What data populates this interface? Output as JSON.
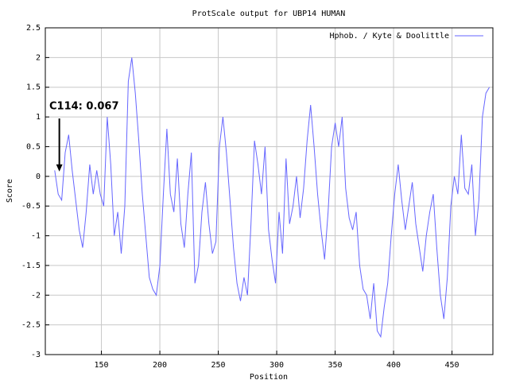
{
  "chart_data": {
    "type": "line",
    "title": "ProtScale output for UBP14 HUMAN",
    "xlabel": "Position",
    "ylabel": "Score",
    "x": [
      110,
      113,
      116,
      119,
      122,
      125,
      128,
      131,
      134,
      137,
      140,
      143,
      146,
      149,
      152,
      155,
      158,
      161,
      164,
      167,
      170,
      173,
      176,
      179,
      182,
      185,
      188,
      191,
      194,
      197,
      200,
      203,
      206,
      209,
      212,
      215,
      218,
      221,
      224,
      227,
      230,
      233,
      236,
      239,
      242,
      245,
      248,
      251,
      254,
      257,
      260,
      263,
      266,
      269,
      272,
      275,
      278,
      281,
      284,
      287,
      290,
      293,
      296,
      299,
      302,
      305,
      308,
      311,
      314,
      317,
      320,
      323,
      326,
      329,
      332,
      335,
      338,
      341,
      344,
      347,
      350,
      353,
      356,
      359,
      362,
      365,
      368,
      371,
      374,
      377,
      380,
      383,
      386,
      389,
      392,
      395,
      398,
      401,
      404,
      407,
      410,
      413,
      416,
      419,
      422,
      425,
      428,
      431,
      434,
      437,
      440,
      443,
      446,
      449,
      452,
      455,
      458,
      461,
      464,
      467,
      470,
      473,
      476,
      479,
      482
    ],
    "series": [
      {
        "name": "Hphob. / Kyte & Doolittle",
        "color": "#6666ff",
        "values": [
          0.1,
          -0.3,
          -0.4,
          0.4,
          0.7,
          0.1,
          -0.4,
          -0.9,
          -1.2,
          -0.6,
          0.2,
          -0.3,
          0.1,
          -0.3,
          -0.5,
          1.0,
          0.2,
          -1.0,
          -0.6,
          -1.3,
          -0.5,
          1.6,
          2.0,
          1.4,
          0.6,
          -0.3,
          -1.0,
          -1.7,
          -1.9,
          -2.0,
          -1.5,
          -0.3,
          0.8,
          -0.3,
          -0.6,
          0.3,
          -0.8,
          -1.2,
          -0.3,
          0.4,
          -1.8,
          -1.5,
          -0.6,
          -0.1,
          -0.8,
          -1.3,
          -1.1,
          0.5,
          1.0,
          0.4,
          -0.4,
          -1.2,
          -1.8,
          -2.1,
          -1.7,
          -2.0,
          -0.8,
          0.6,
          0.2,
          -0.3,
          0.5,
          -0.9,
          -1.4,
          -1.8,
          -0.6,
          -1.3,
          0.3,
          -0.8,
          -0.5,
          0.0,
          -0.7,
          -0.2,
          0.6,
          1.2,
          0.5,
          -0.3,
          -0.9,
          -1.4,
          -0.6,
          0.5,
          0.9,
          0.5,
          1.0,
          -0.2,
          -0.7,
          -0.9,
          -0.6,
          -1.5,
          -1.9,
          -2.0,
          -2.4,
          -1.8,
          -2.6,
          -2.7,
          -2.2,
          -1.8,
          -1.0,
          -0.3,
          0.2,
          -0.4,
          -0.9,
          -0.5,
          -0.1,
          -0.8,
          -1.2,
          -1.6,
          -1.0,
          -0.6,
          -0.3,
          -1.2,
          -2.0,
          -2.4,
          -1.7,
          -0.5,
          0.0,
          -0.3,
          0.7,
          -0.2,
          -0.3,
          0.2,
          -1.0,
          -0.4,
          1.0,
          1.4,
          1.5
        ]
      }
    ],
    "xlim": [
      102,
      485
    ],
    "ylim": [
      -3,
      2.5
    ],
    "xticks": [
      150,
      200,
      250,
      300,
      350,
      400,
      450
    ],
    "yticks": [
      -3,
      -2.5,
      -2,
      -1.5,
      -1,
      -0.5,
      0,
      0.5,
      1,
      1.5,
      2,
      2.5
    ],
    "grid": true,
    "legend": "top-right",
    "annotation": {
      "text": "C114: 0.067",
      "x": 114,
      "y": 0.067
    }
  }
}
